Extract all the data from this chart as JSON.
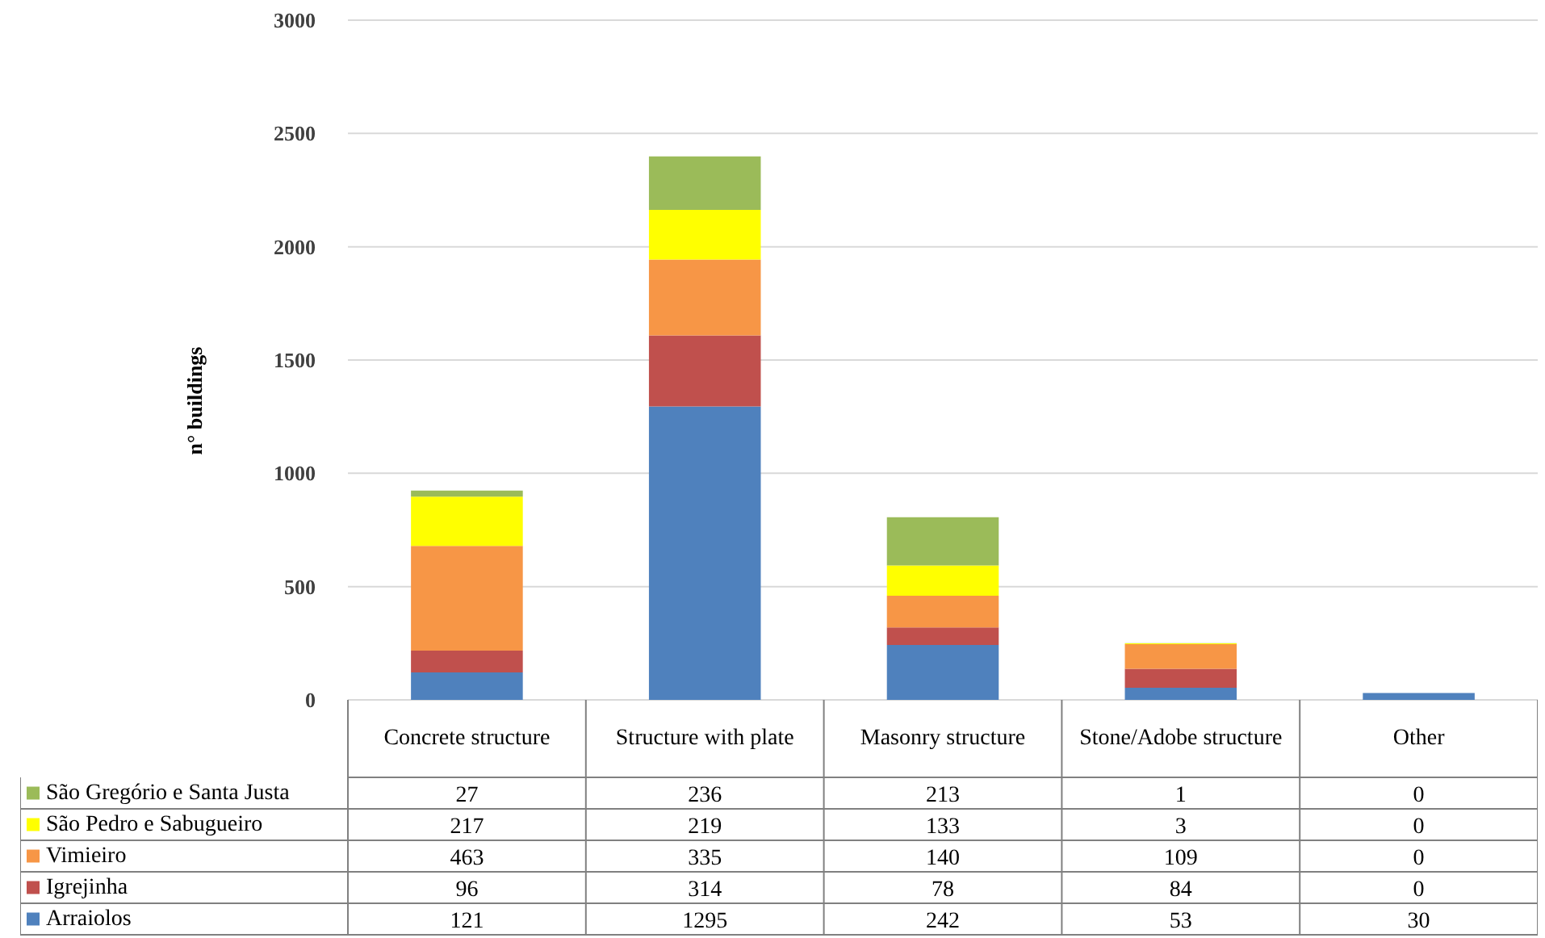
{
  "chart_data": {
    "type": "bar",
    "stacked": true,
    "ylabel": "n° buildings",
    "categories": [
      "Concrete structure",
      "Structure with plate",
      "Masonry structure",
      "Stone/Adobe structure",
      "Other"
    ],
    "series": [
      {
        "name": "Arraiolos",
        "color": "#4f81bd",
        "values": [
          121,
          1295,
          242,
          53,
          30
        ]
      },
      {
        "name": "Igrejinha",
        "color": "#c0504d",
        "values": [
          96,
          314,
          78,
          84,
          0
        ]
      },
      {
        "name": "Vimieiro",
        "color": "#f79646",
        "values": [
          463,
          335,
          140,
          109,
          0
        ]
      },
      {
        "name": "São Pedro e Sabugueiro",
        "color": "#ffff00",
        "values": [
          217,
          219,
          133,
          3,
          0
        ]
      },
      {
        "name": "São Gregório e Santa Justa",
        "color": "#9bbb59",
        "values": [
          27,
          236,
          213,
          1,
          0
        ]
      }
    ],
    "ylim": [
      0,
      3000
    ],
    "yticks": [
      0,
      500,
      1000,
      1500,
      2000,
      2500,
      3000
    ],
    "grid": "y",
    "legend": "bottom",
    "data_labels": true
  }
}
